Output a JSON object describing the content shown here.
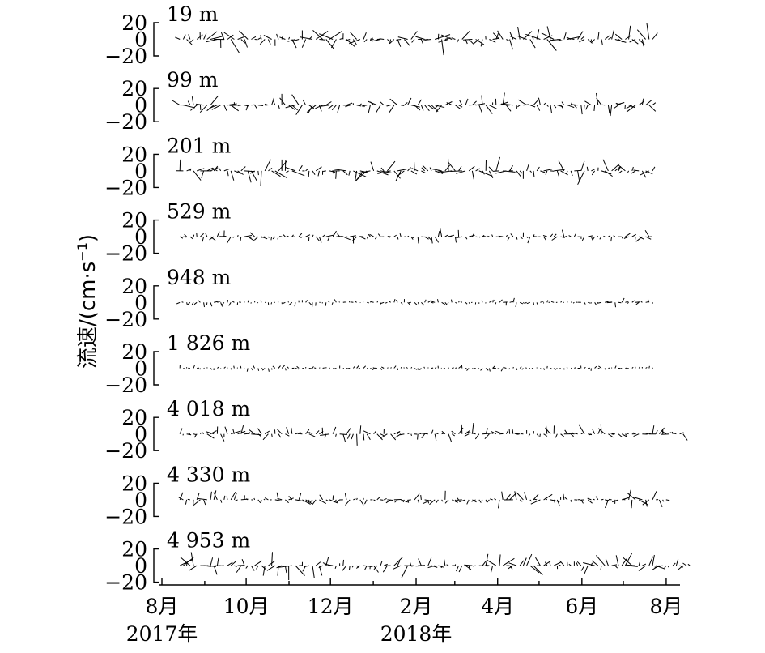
{
  "chart_data": {
    "type": "stick",
    "y_axis_label": "流速/(cm·s",
    "y_axis_label_sup": "−1",
    "y_axis_label_end": ")",
    "y_ticks": [
      "20",
      "0",
      "−20"
    ],
    "y_tick_values": [
      20,
      0,
      -20
    ],
    "panel_ylim": [
      -20,
      20
    ],
    "x_range": [
      "2017-08-01",
      "2018-08-20"
    ],
    "x_ticks": [
      {
        "date": "2017-08-01",
        "label": "8月"
      },
      {
        "date": "2017-10-01",
        "label": "10月"
      },
      {
        "date": "2017-12-01",
        "label": "12月"
      },
      {
        "date": "2018-02-01",
        "label": "2月"
      },
      {
        "date": "2018-04-01",
        "label": "4月"
      },
      {
        "date": "2018-06-01",
        "label": "6月"
      },
      {
        "date": "2018-08-01",
        "label": "8月"
      }
    ],
    "minor_tick_months": [
      "2017-09-01",
      "2017-11-01",
      "2018-01-01",
      "2018-03-01",
      "2018-05-01",
      "2018-07-01"
    ],
    "year_labels": [
      {
        "date": "2017-08-01",
        "label": "2017年"
      },
      {
        "date": "2018-02-01",
        "label": "2018年"
      }
    ],
    "panels": [
      {
        "depth": "19 m",
        "end": "2018-07-23",
        "amp": 1.0
      },
      {
        "depth": "99 m",
        "end": "2018-07-23",
        "amp": 0.8
      },
      {
        "depth": "201 m",
        "end": "2018-07-23",
        "amp": 0.95
      },
      {
        "depth": "529 m",
        "end": "2018-07-23",
        "amp": 0.5
      },
      {
        "depth": "948 m",
        "end": "2018-07-23",
        "amp": 0.3
      },
      {
        "depth": "1 826 m",
        "end": "2018-07-23",
        "amp": 0.25
      },
      {
        "depth": "4 018 m",
        "end": "2018-08-15",
        "amp": 0.7
      },
      {
        "depth": "4 330 m",
        "end": "2018-08-01",
        "amp": 0.65
      },
      {
        "depth": "4 953 m",
        "end": "2018-08-20",
        "amp": 0.9
      }
    ]
  }
}
